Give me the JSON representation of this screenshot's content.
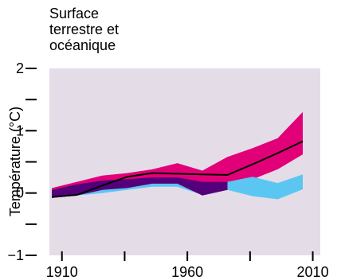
{
  "chart_data": {
    "type": "area",
    "title": [
      "Surface",
      "terrestre et",
      "océanique"
    ],
    "ylabel": "Température (°C)",
    "xlabel": "",
    "xlim": [
      1905,
      2013
    ],
    "ylim": [
      -1,
      2
    ],
    "xticks": [
      1910,
      1960,
      2010
    ],
    "xticks_minor": [
      1935,
      1985
    ],
    "yticks": [
      -1,
      0,
      1,
      2
    ],
    "yticks_minor": [
      -0.5,
      0.5,
      1.5
    ],
    "grid": false,
    "plot_background": "#e4dde7",
    "series": [
      {
        "kind": "band",
        "color": "#e10078",
        "x": [
          1906,
          1916,
          1926,
          1936,
          1946,
          1956,
          1966,
          1976,
          1986,
          1996,
          2006
        ],
        "upper": [
          0.08,
          0.18,
          0.28,
          0.32,
          0.38,
          0.48,
          0.36,
          0.58,
          0.72,
          0.88,
          1.3
        ],
        "lower": [
          -0.08,
          -0.04,
          0.05,
          0.08,
          0.15,
          0.18,
          0.1,
          0.12,
          0.22,
          0.38,
          0.62
        ]
      },
      {
        "kind": "band",
        "color": "#5cc6f2",
        "x": [
          1906,
          1916,
          1926,
          1936,
          1946,
          1956,
          1966,
          1976,
          1986,
          1996,
          2006
        ],
        "upper": [
          0.02,
          0.08,
          0.14,
          0.18,
          0.22,
          0.22,
          0.16,
          0.18,
          0.26,
          0.16,
          0.3
        ],
        "lower": [
          -0.08,
          -0.04,
          0.0,
          0.05,
          0.1,
          0.1,
          -0.03,
          0.05,
          -0.05,
          -0.1,
          0.06
        ]
      },
      {
        "kind": "band",
        "color": "#53007a",
        "x": [
          1906,
          1916,
          1926,
          1936,
          1946,
          1956,
          1966,
          1976
        ],
        "upper": [
          0.05,
          0.14,
          0.2,
          0.22,
          0.25,
          0.25,
          0.18,
          0.18
        ],
        "lower": [
          -0.08,
          -0.04,
          0.05,
          0.08,
          0.15,
          0.15,
          -0.04,
          0.05
        ]
      },
      {
        "kind": "line",
        "color": "#000000",
        "x": [
          1906,
          1916,
          1926,
          1936,
          1946,
          1956,
          1966,
          1976,
          1986,
          1996,
          2006
        ],
        "y": [
          -0.06,
          -0.03,
          0.12,
          0.26,
          0.32,
          0.31,
          0.3,
          0.29,
          0.46,
          0.64,
          0.83
        ]
      }
    ]
  }
}
